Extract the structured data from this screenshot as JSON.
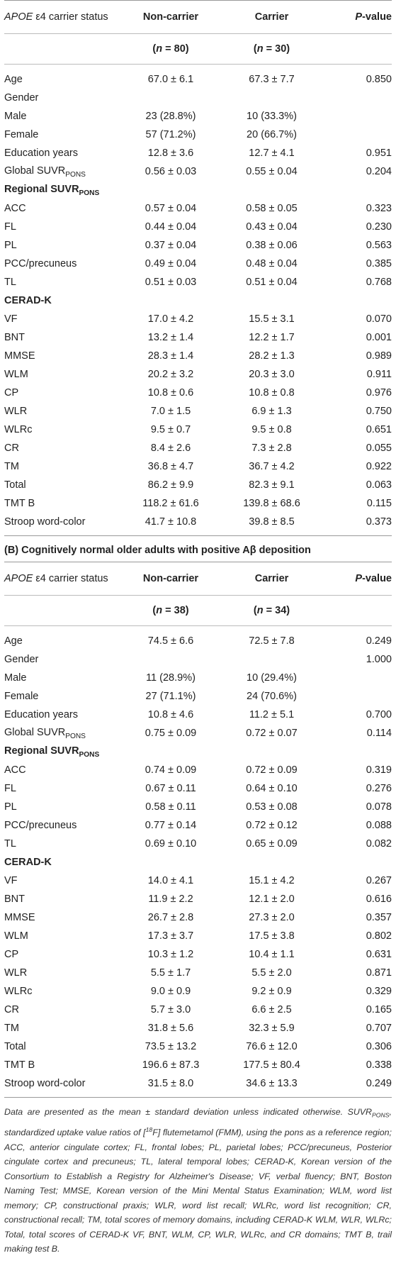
{
  "tables": [
    {
      "header": [
        [
          {
            "t": "APOE",
            "s": "italic"
          },
          {
            "t": " ε4 carrier status"
          }
        ],
        "Non-carrier",
        "Carrier",
        [
          {
            "t": "P",
            "s": "italic"
          },
          {
            "t": "-value"
          }
        ]
      ],
      "n_row": [
        [
          {
            "t": "("
          },
          {
            "t": "n",
            "s": "italic"
          },
          {
            "t": " = 80)"
          }
        ],
        [
          {
            "t": "("
          },
          {
            "t": "n",
            "s": "italic"
          },
          {
            "t": " = 30)"
          }
        ]
      ],
      "rows": [
        {
          "label": "Age",
          "non_carrier": "67.0 ± 6.1",
          "carrier": "67.3 ± 7.7",
          "p_value": "0.850"
        },
        {
          "label": "Gender"
        },
        {
          "label": "Male",
          "non_carrier": "23 (28.8%)",
          "carrier": "10 (33.3%)"
        },
        {
          "label": "Female",
          "non_carrier": "57 (71.2%)",
          "carrier": "20 (66.7%)"
        },
        {
          "label": "Education years",
          "non_carrier": "12.8 ± 3.6",
          "carrier": "12.7 ± 4.1",
          "p_value": "0.951"
        },
        {
          "label": [
            {
              "t": "Global SUVR"
            },
            {
              "t": "PONS",
              "s": "sub"
            }
          ],
          "non_carrier": "0.56 ± 0.03",
          "carrier": "0.55 ± 0.04",
          "p_value": "0.204"
        },
        {
          "label": [
            {
              "t": "Regional SUVR"
            },
            {
              "t": "PONS",
              "s": "sub"
            }
          ],
          "section": true
        },
        {
          "label": "ACC",
          "non_carrier": "0.57 ± 0.04",
          "carrier": "0.58 ± 0.05",
          "p_value": "0.323"
        },
        {
          "label": "FL",
          "non_carrier": "0.44 ± 0.04",
          "carrier": "0.43 ± 0.04",
          "p_value": "0.230"
        },
        {
          "label": "PL",
          "non_carrier": "0.37 ± 0.04",
          "carrier": "0.38 ± 0.06",
          "p_value": "0.563"
        },
        {
          "label": "PCC/precuneus",
          "non_carrier": "0.49 ± 0.04",
          "carrier": "0.48 ± 0.04",
          "p_value": "0.385"
        },
        {
          "label": "TL",
          "non_carrier": "0.51 ± 0.03",
          "carrier": "0.51 ± 0.04",
          "p_value": "0.768"
        },
        {
          "label": "CERAD-K",
          "section": true
        },
        {
          "label": "VF",
          "non_carrier": "17.0 ± 4.2",
          "carrier": "15.5 ± 3.1",
          "p_value": "0.070"
        },
        {
          "label": "BNT",
          "non_carrier": "13.2 ± 1.4",
          "carrier": "12.2 ± 1.7",
          "p_value": "0.001"
        },
        {
          "label": "MMSE",
          "non_carrier": "28.3 ± 1.4",
          "carrier": "28.2 ± 1.3",
          "p_value": "0.989"
        },
        {
          "label": "WLM",
          "non_carrier": "20.2 ± 3.2",
          "carrier": "20.3 ± 3.0",
          "p_value": "0.911"
        },
        {
          "label": "CP",
          "non_carrier": "10.8 ± 0.6",
          "carrier": "10.8 ± 0.8",
          "p_value": "0.976"
        },
        {
          "label": "WLR",
          "non_carrier": "7.0 ± 1.5",
          "carrier": "6.9 ± 1.3",
          "p_value": "0.750"
        },
        {
          "label": "WLRc",
          "non_carrier": "9.5 ± 0.7",
          "carrier": "9.5 ± 0.8",
          "p_value": "0.651"
        },
        {
          "label": "CR",
          "non_carrier": "8.4 ± 2.6",
          "carrier": "7.3 ± 2.8",
          "p_value": "0.055"
        },
        {
          "label": "TM",
          "non_carrier": "36.8 ± 4.7",
          "carrier": "36.7 ± 4.2",
          "p_value": "0.922"
        },
        {
          "label": "Total",
          "non_carrier": "86.2 ± 9.9",
          "carrier": "82.3 ± 9.1",
          "p_value": "0.063"
        },
        {
          "label": "TMT B",
          "non_carrier": "118.2 ± 61.6",
          "carrier": "139.8 ± 68.6",
          "p_value": "0.115"
        },
        {
          "label": "Stroop word-color",
          "non_carrier": "41.7 ± 10.8",
          "carrier": "39.8 ± 8.5",
          "p_value": "0.373"
        }
      ]
    },
    {
      "title": "(B) Cognitively normal older adults with positive Aβ deposition",
      "header": [
        [
          {
            "t": "APOE",
            "s": "italic"
          },
          {
            "t": " ε4 carrier status"
          }
        ],
        "Non-carrier",
        "Carrier",
        [
          {
            "t": "P",
            "s": "italic"
          },
          {
            "t": "-value"
          }
        ]
      ],
      "n_row": [
        [
          {
            "t": "("
          },
          {
            "t": "n",
            "s": "italic"
          },
          {
            "t": " = 38)"
          }
        ],
        [
          {
            "t": "("
          },
          {
            "t": "n",
            "s": "italic"
          },
          {
            "t": " = 34)"
          }
        ]
      ],
      "rows": [
        {
          "label": "Age",
          "non_carrier": "74.5 ± 6.6",
          "carrier": "72.5 ± 7.8",
          "p_value": "0.249"
        },
        {
          "label": "Gender",
          "p_value": "1.000"
        },
        {
          "label": "Male",
          "non_carrier": "11 (28.9%)",
          "carrier": "10 (29.4%)"
        },
        {
          "label": "Female",
          "non_carrier": "27 (71.1%)",
          "carrier": "24 (70.6%)"
        },
        {
          "label": "Education years",
          "non_carrier": "10.8 ± 4.6",
          "carrier": "11.2 ± 5.1",
          "p_value": "0.700"
        },
        {
          "label": [
            {
              "t": "Global SUVR"
            },
            {
              "t": "PONS",
              "s": "sub"
            }
          ],
          "non_carrier": "0.75 ± 0.09",
          "carrier": "0.72 ± 0.07",
          "p_value": "0.114"
        },
        {
          "label": [
            {
              "t": "Regional SUVR"
            },
            {
              "t": "PONS",
              "s": "sub"
            }
          ],
          "section": true
        },
        {
          "label": "ACC",
          "non_carrier": "0.74 ± 0.09",
          "carrier": "0.72 ± 0.09",
          "p_value": "0.319"
        },
        {
          "label": "FL",
          "non_carrier": "0.67 ± 0.11",
          "carrier": "0.64 ± 0.10",
          "p_value": "0.276"
        },
        {
          "label": "PL",
          "non_carrier": "0.58 ± 0.11",
          "carrier": "0.53 ± 0.08",
          "p_value": "0.078"
        },
        {
          "label": "PCC/precuneus",
          "non_carrier": "0.77 ± 0.14",
          "carrier": "0.72 ± 0.12",
          "p_value": "0.088"
        },
        {
          "label": "TL",
          "non_carrier": "0.69 ± 0.10",
          "carrier": "0.65 ± 0.09",
          "p_value": "0.082"
        },
        {
          "label": "CERAD-K",
          "section": true
        },
        {
          "label": "VF",
          "non_carrier": "14.0 ± 4.1",
          "carrier": "15.1 ± 4.2",
          "p_value": "0.267"
        },
        {
          "label": "BNT",
          "non_carrier": "11.9 ± 2.2",
          "carrier": "12.1 ± 2.0",
          "p_value": "0.616"
        },
        {
          "label": "MMSE",
          "non_carrier": "26.7 ± 2.8",
          "carrier": "27.3 ± 2.0",
          "p_value": "0.357"
        },
        {
          "label": "WLM",
          "non_carrier": "17.3 ± 3.7",
          "carrier": "17.5 ± 3.8",
          "p_value": "0.802"
        },
        {
          "label": "CP",
          "non_carrier": "10.3 ± 1.2",
          "carrier": "10.4 ± 1.1",
          "p_value": "0.631"
        },
        {
          "label": "WLR",
          "non_carrier": "5.5 ± 1.7",
          "carrier": "5.5 ± 2.0",
          "p_value": "0.871"
        },
        {
          "label": "WLRc",
          "non_carrier": "9.0 ± 0.9",
          "carrier": "9.2 ± 0.9",
          "p_value": "0.329"
        },
        {
          "label": "CR",
          "non_carrier": "5.7 ± 3.0",
          "carrier": "6.6 ± 2.5",
          "p_value": "0.165"
        },
        {
          "label": "TM",
          "non_carrier": "31.8 ± 5.6",
          "carrier": "32.3 ± 5.9",
          "p_value": "0.707"
        },
        {
          "label": "Total",
          "non_carrier": "73.5 ± 13.2",
          "carrier": "76.6 ± 12.0",
          "p_value": "0.306"
        },
        {
          "label": "TMT B",
          "non_carrier": "196.6 ± 87.3",
          "carrier": "177.5 ± 80.4",
          "p_value": "0.338"
        },
        {
          "label": "Stroop word-color",
          "non_carrier": "31.5 ± 8.0",
          "carrier": "34.6 ± 13.3",
          "p_value": "0.249"
        }
      ]
    }
  ],
  "footnote": [
    {
      "t": "Data are presented as the mean ± standard deviation unless indicated otherwise. SUVR"
    },
    {
      "t": "PONS",
      "s": "sub"
    },
    {
      "t": ", standardized uptake value ratios of ["
    },
    {
      "t": "18",
      "s": "sup"
    },
    {
      "t": "F] flutemetamol (FMM), using the pons as a reference region; ACC, anterior cingulate cortex; FL, frontal lobes; PL, parietal lobes; PCC/precuneus, Posterior cingulate cortex and precuneus; TL, lateral temporal lobes; CERAD-K, Korean version of the Consortium to Establish a Registry for Alzheimer's Disease; VF, verbal fluency; BNT, Boston Naming Test; MMSE, Korean version of the Mini Mental Status Examination; WLM, word list memory; CP, constructional praxis; WLR, word list recall; WLRc, word list recognition; CR, constructional recall; TM, total scores of memory domains, including CERAD-K WLM, WLR, WLRc; Total, total scores of CERAD-K VF, BNT, WLM, CP, WLR, WLRc, and CR domains; TMT B, trail making test B."
    }
  ]
}
